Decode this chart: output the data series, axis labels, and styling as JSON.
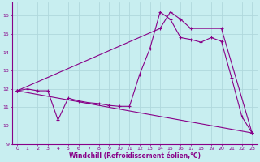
{
  "xlabel": "Windchill (Refroidissement éolien,°C)",
  "bg_color": "#c8eef0",
  "grid_color": "#b0d8dc",
  "line_color": "#880088",
  "xlim": [
    -0.5,
    23.5
  ],
  "ylim": [
    9.0,
    16.7
  ],
  "yticks": [
    9,
    10,
    11,
    12,
    13,
    14,
    15,
    16
  ],
  "xticks": [
    0,
    1,
    2,
    3,
    4,
    5,
    6,
    7,
    8,
    9,
    10,
    11,
    12,
    13,
    14,
    15,
    16,
    17,
    18,
    19,
    20,
    21,
    22,
    23
  ],
  "line1_x": [
    0,
    1,
    2,
    3,
    4,
    5,
    6,
    7,
    8,
    9,
    10,
    11,
    12,
    13,
    14,
    15,
    16,
    17,
    18,
    19,
    20,
    21,
    22,
    23
  ],
  "line1_y": [
    11.9,
    12.0,
    11.9,
    11.9,
    10.3,
    11.5,
    11.35,
    11.25,
    11.2,
    11.1,
    11.05,
    11.05,
    12.8,
    14.2,
    16.2,
    15.8,
    14.8,
    14.7,
    14.55,
    14.8,
    14.6,
    12.6,
    10.5,
    9.6
  ],
  "line2_x": [
    0,
    14,
    15,
    16,
    17,
    20,
    23
  ],
  "line2_y": [
    11.9,
    15.3,
    16.2,
    15.8,
    15.3,
    15.3,
    9.6
  ],
  "line3_x": [
    0,
    23
  ],
  "line3_y": [
    11.9,
    9.6
  ]
}
